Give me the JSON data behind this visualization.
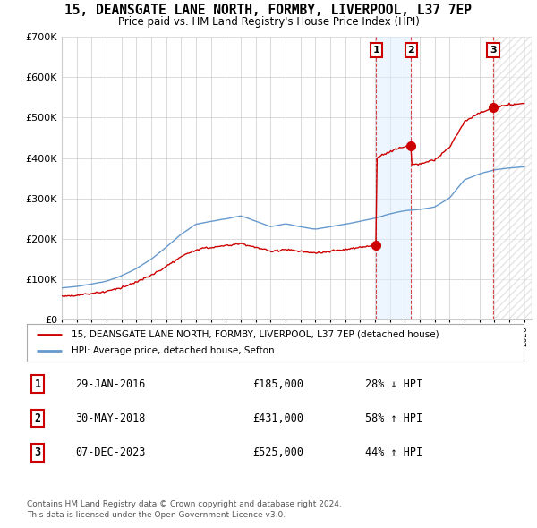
{
  "title": "15, DEANSGATE LANE NORTH, FORMBY, LIVERPOOL, L37 7EP",
  "subtitle": "Price paid vs. HM Land Registry's House Price Index (HPI)",
  "ylim": [
    0,
    700000
  ],
  "yticks": [
    0,
    100000,
    200000,
    300000,
    400000,
    500000,
    600000,
    700000
  ],
  "xlim_start": 1995.0,
  "xlim_end": 2026.5,
  "sale_dates": [
    2016.08,
    2018.42,
    2023.92
  ],
  "sale_prices": [
    185000,
    431000,
    525000
  ],
  "sale_labels": [
    "1",
    "2",
    "3"
  ],
  "legend_red": "15, DEANSGATE LANE NORTH, FORMBY, LIVERPOOL, L37 7EP (detached house)",
  "legend_blue": "HPI: Average price, detached house, Sefton",
  "table_rows": [
    [
      "1",
      "29-JAN-2016",
      "£185,000",
      "28% ↓ HPI"
    ],
    [
      "2",
      "30-MAY-2018",
      "£431,000",
      "58% ↑ HPI"
    ],
    [
      "3",
      "07-DEC-2023",
      "£525,000",
      "44% ↑ HPI"
    ]
  ],
  "footnote1": "Contains HM Land Registry data © Crown copyright and database right 2024.",
  "footnote2": "This data is licensed under the Open Government Licence v3.0.",
  "red_color": "#cc0000",
  "blue_color": "#6699cc",
  "shade_color": "#ddeeff",
  "bg_color": "#ffffff",
  "grid_color": "#cccccc",
  "hatch_color": "#cccccc"
}
